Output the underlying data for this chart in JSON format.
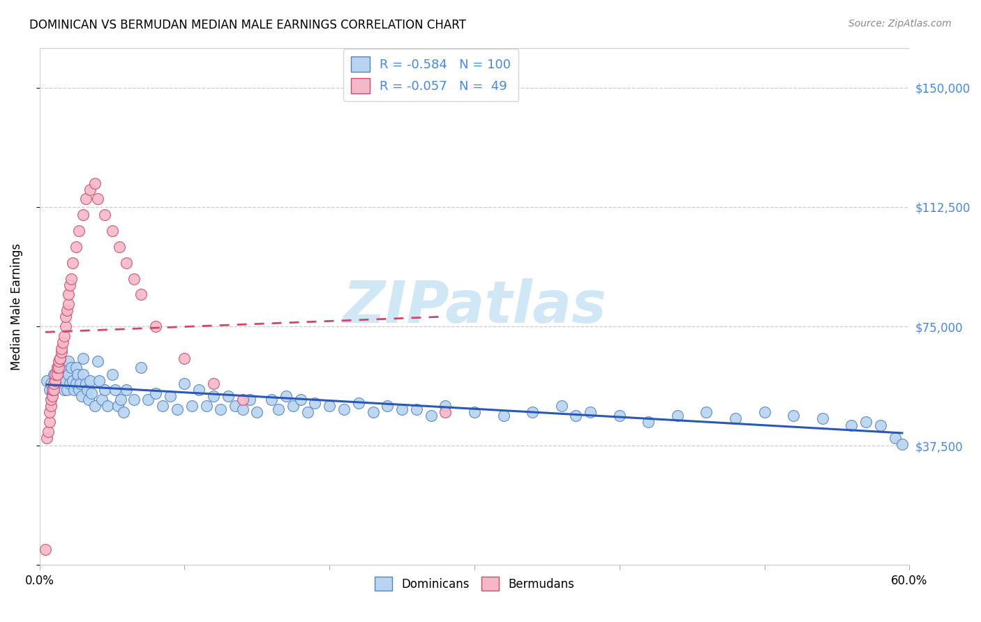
{
  "title": "DOMINICAN VS BERMUDAN MEDIAN MALE EARNINGS CORRELATION CHART",
  "source": "Source: ZipAtlas.com",
  "ylabel": "Median Male Earnings",
  "xlim": [
    0.0,
    0.6
  ],
  "ylim": [
    0,
    162500
  ],
  "yticks": [
    0,
    37500,
    75000,
    112500,
    150000
  ],
  "ytick_labels_right": [
    "",
    "$37,500",
    "$75,000",
    "$112,500",
    "$150,000"
  ],
  "xtick_positions": [
    0.0,
    0.1,
    0.2,
    0.3,
    0.4,
    0.5,
    0.6
  ],
  "xtick_labels": [
    "0.0%",
    "",
    "",
    "",
    "",
    "",
    "60.0%"
  ],
  "dom_fill": "#b8d4f0",
  "dom_edge": "#5080c8",
  "berm_fill": "#f5b8c8",
  "berm_edge": "#d04868",
  "dom_line_color": "#2858b8",
  "berm_line_color": "#d04868",
  "R_dom": -0.584,
  "N_dom": 100,
  "R_berm": -0.057,
  "N_berm": 49,
  "watermark": "ZIPatlas",
  "watermark_color": "#d0e8f5",
  "bg": "#ffffff",
  "right_label_color": "#4488ee",
  "grid_color": "#cccccc",
  "dom_x": [
    0.005,
    0.007,
    0.008,
    0.009,
    0.01,
    0.01,
    0.012,
    0.013,
    0.014,
    0.015,
    0.015,
    0.016,
    0.017,
    0.018,
    0.018,
    0.019,
    0.02,
    0.02,
    0.021,
    0.022,
    0.023,
    0.024,
    0.025,
    0.025,
    0.026,
    0.027,
    0.028,
    0.029,
    0.03,
    0.03,
    0.032,
    0.033,
    0.034,
    0.035,
    0.036,
    0.038,
    0.04,
    0.041,
    0.043,
    0.045,
    0.047,
    0.05,
    0.052,
    0.054,
    0.056,
    0.058,
    0.06,
    0.065,
    0.07,
    0.075,
    0.08,
    0.085,
    0.09,
    0.095,
    0.1,
    0.105,
    0.11,
    0.115,
    0.12,
    0.125,
    0.13,
    0.135,
    0.14,
    0.145,
    0.15,
    0.16,
    0.165,
    0.17,
    0.175,
    0.18,
    0.185,
    0.19,
    0.2,
    0.21,
    0.22,
    0.23,
    0.24,
    0.25,
    0.26,
    0.27,
    0.28,
    0.3,
    0.32,
    0.34,
    0.36,
    0.37,
    0.38,
    0.4,
    0.42,
    0.44,
    0.46,
    0.48,
    0.5,
    0.52,
    0.54,
    0.56,
    0.57,
    0.58,
    0.59,
    0.595
  ],
  "dom_y": [
    58000,
    55000,
    57000,
    54000,
    60000,
    56000,
    62000,
    59000,
    57000,
    63000,
    60000,
    58000,
    55000,
    62000,
    58000,
    55000,
    64000,
    60000,
    57000,
    62000,
    58000,
    55000,
    62000,
    57000,
    60000,
    55000,
    57000,
    53000,
    65000,
    60000,
    57000,
    55000,
    52000,
    58000,
    54000,
    50000,
    64000,
    58000,
    52000,
    55000,
    50000,
    60000,
    55000,
    50000,
    52000,
    48000,
    55000,
    52000,
    62000,
    52000,
    54000,
    50000,
    53000,
    49000,
    57000,
    50000,
    55000,
    50000,
    53000,
    49000,
    53000,
    50000,
    49000,
    52000,
    48000,
    52000,
    49000,
    53000,
    50000,
    52000,
    48000,
    51000,
    50000,
    49000,
    51000,
    48000,
    50000,
    49000,
    49000,
    47000,
    50000,
    48000,
    47000,
    48000,
    50000,
    47000,
    48000,
    47000,
    45000,
    47000,
    48000,
    46000,
    48000,
    47000,
    46000,
    44000,
    45000,
    44000,
    40000,
    38000
  ],
  "berm_x": [
    0.004,
    0.005,
    0.006,
    0.007,
    0.007,
    0.008,
    0.008,
    0.009,
    0.009,
    0.01,
    0.01,
    0.011,
    0.011,
    0.012,
    0.012,
    0.013,
    0.013,
    0.014,
    0.014,
    0.015,
    0.015,
    0.016,
    0.017,
    0.018,
    0.018,
    0.019,
    0.02,
    0.02,
    0.021,
    0.022,
    0.023,
    0.025,
    0.027,
    0.03,
    0.032,
    0.035,
    0.038,
    0.04,
    0.045,
    0.05,
    0.055,
    0.06,
    0.065,
    0.07,
    0.08,
    0.1,
    0.12,
    0.14,
    0.28
  ],
  "berm_y": [
    5000,
    40000,
    42000,
    45000,
    48000,
    50000,
    52000,
    53000,
    55000,
    55000,
    57000,
    58000,
    60000,
    60000,
    62000,
    62000,
    64000,
    65000,
    65000,
    67000,
    68000,
    70000,
    72000,
    75000,
    78000,
    80000,
    82000,
    85000,
    88000,
    90000,
    95000,
    100000,
    105000,
    110000,
    115000,
    118000,
    120000,
    115000,
    110000,
    105000,
    100000,
    95000,
    90000,
    85000,
    75000,
    65000,
    57000,
    52000,
    48000
  ]
}
